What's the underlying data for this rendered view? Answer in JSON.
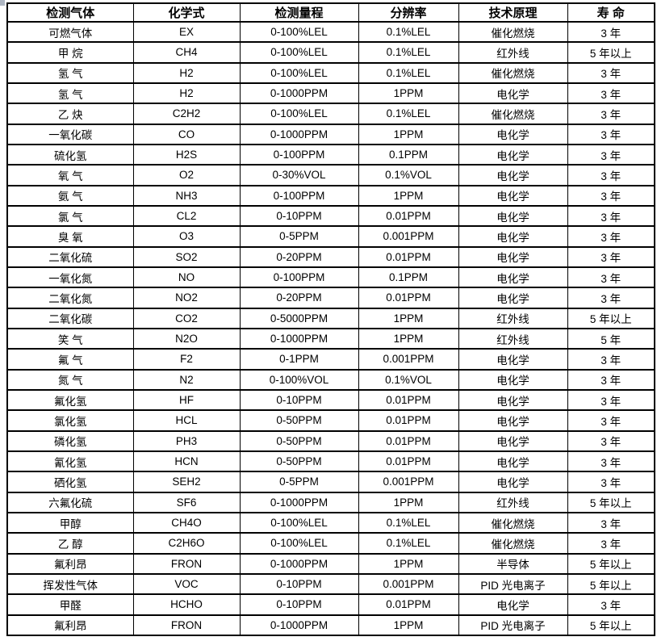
{
  "colors": {
    "background": "#ffffff",
    "text": "#000000",
    "border": "#000000"
  },
  "table": {
    "column_keys": [
      "gas",
      "formula",
      "range",
      "resolution",
      "principle",
      "lifespan"
    ],
    "headers": [
      "检测气体",
      "化学式",
      "检测量程",
      "分辨率",
      "技术原理",
      "寿 命"
    ],
    "rows": [
      [
        "可燃气体",
        "EX",
        "0-100%LEL",
        "0.1%LEL",
        "催化燃烧",
        "3 年"
      ],
      [
        "甲 烷",
        "CH4",
        "0-100%LEL",
        "0.1%LEL",
        "红外线",
        "5 年以上"
      ],
      [
        "氢 气",
        "H2",
        "0-100%LEL",
        "0.1%LEL",
        "催化燃烧",
        "3 年"
      ],
      [
        "氢 气",
        "H2",
        "0-1000PPM",
        "1PPM",
        "电化学",
        "3 年"
      ],
      [
        "乙 炔",
        "C2H2",
        "0-100%LEL",
        "0.1%LEL",
        "催化燃烧",
        "3 年"
      ],
      [
        "一氧化碳",
        "CO",
        "0-1000PPM",
        "1PPM",
        "电化学",
        "3 年"
      ],
      [
        "硫化氢",
        "H2S",
        "0-100PPM",
        "0.1PPM",
        "电化学",
        "3 年"
      ],
      [
        "氧 气",
        "O2",
        "0-30%VOL",
        "0.1%VOL",
        "电化学",
        "3 年"
      ],
      [
        "氨 气",
        "NH3",
        "0-100PPM",
        "1PPM",
        "电化学",
        "3 年"
      ],
      [
        "氯 气",
        "CL2",
        "0-10PPM",
        "0.01PPM",
        "电化学",
        "3 年"
      ],
      [
        "臭 氧",
        "O3",
        "0-5PPM",
        "0.001PPM",
        "电化学",
        "3 年"
      ],
      [
        "二氧化硫",
        "SO2",
        "0-20PPM",
        "0.01PPM",
        "电化学",
        "3 年"
      ],
      [
        "一氧化氮",
        "NO",
        "0-100PPM",
        "0.1PPM",
        "电化学",
        "3 年"
      ],
      [
        "二氧化氮",
        "NO2",
        "0-20PPM",
        "0.01PPM",
        "电化学",
        "3 年"
      ],
      [
        "二氧化碳",
        "CO2",
        "0-5000PPM",
        "1PPM",
        "红外线",
        "5 年以上"
      ],
      [
        "笑 气",
        "N2O",
        "0-1000PPM",
        "1PPM",
        "红外线",
        "5 年"
      ],
      [
        "氟 气",
        "F2",
        "0-1PPM",
        "0.001PPM",
        "电化学",
        "3 年"
      ],
      [
        "氮 气",
        "N2",
        "0-100%VOL",
        "0.1%VOL",
        "电化学",
        "3 年"
      ],
      [
        "氟化氢",
        "HF",
        "0-10PPM",
        "0.01PPM",
        "电化学",
        "3 年"
      ],
      [
        "氯化氢",
        "HCL",
        "0-50PPM",
        "0.01PPM",
        "电化学",
        "3 年"
      ],
      [
        "磷化氢",
        "PH3",
        "0-50PPM",
        "0.01PPM",
        "电化学",
        "3 年"
      ],
      [
        "氰化氢",
        "HCN",
        "0-50PPM",
        "0.01PPM",
        "电化学",
        "3 年"
      ],
      [
        "硒化氢",
        "SEH2",
        "0-5PPM",
        "0.001PPM",
        "电化学",
        "3 年"
      ],
      [
        "六氟化硫",
        "SF6",
        "0-1000PPM",
        "1PPM",
        "红外线",
        "5 年以上"
      ],
      [
        "甲醇",
        "CH4O",
        "0-100%LEL",
        "0.1%LEL",
        "催化燃烧",
        "3 年"
      ],
      [
        "乙 醇",
        "C2H6O",
        "0-100%LEL",
        "0.1%LEL",
        "催化燃烧",
        "3 年"
      ],
      [
        "氟利昂",
        "FRON",
        "0-1000PPM",
        "1PPM",
        "半导体",
        "5 年以上"
      ],
      [
        "挥发性气体",
        "VOC",
        "0-10PPM",
        "0.001PPM",
        "PID 光电离子",
        "5 年以上"
      ],
      [
        "甲醛",
        "HCHO",
        "0-10PPM",
        "0.01PPM",
        "电化学",
        "3 年"
      ],
      [
        "氟利昂",
        "FRON",
        "0-1000PPM",
        "1PPM",
        "PID 光电离子",
        "5 年以上"
      ]
    ]
  }
}
